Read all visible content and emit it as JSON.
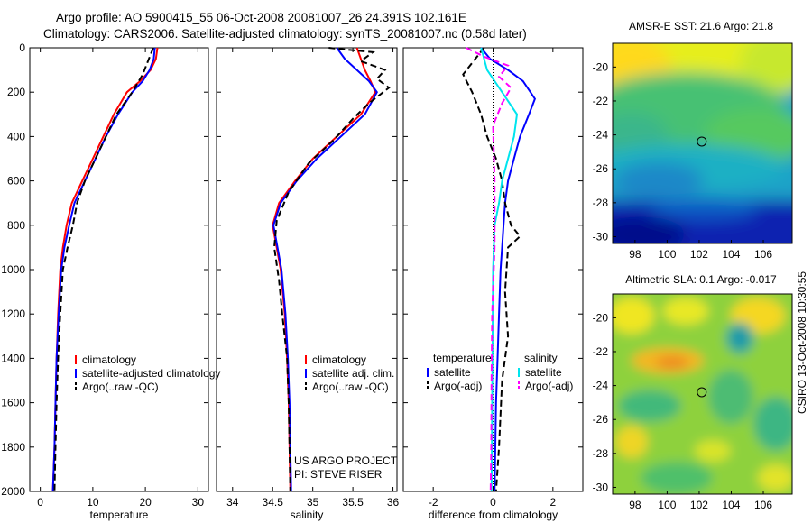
{
  "figure": {
    "title_line1": "Argo profile: AO 5900415_55 06-Oct-2008 20081007_26 24.391S 102.161E",
    "title_line2": "Climatology: CARS2006. Satellite-adjusted climatology: synTS_20081007.nc (0.58d later)",
    "side_stamp": "CSIRO 13-Oct-2008 10:30:55"
  },
  "colors": {
    "climatology": "#ff0000",
    "satellite": "#0000ff",
    "argo": "#000000",
    "salinity_satellite": "#00e5ee",
    "salinity_argo": "#ff00ff"
  },
  "chart_data": [
    {
      "type": "line",
      "id": "temperature",
      "xlabel": "temperature",
      "ylabel": "depth",
      "xlim": [
        -2,
        32
      ],
      "ylim": [
        2000,
        0
      ],
      "xticks": [
        0,
        10,
        20,
        30
      ],
      "yticks": [
        0,
        200,
        400,
        600,
        800,
        1000,
        1200,
        1400,
        1600,
        1800,
        2000
      ],
      "series": [
        {
          "name": "climatology",
          "color": "#ff0000",
          "dash": "solid",
          "x": [
            22.3,
            22,
            21,
            19,
            16.5,
            14,
            12,
            10,
            8,
            6,
            5,
            4.3,
            3.8,
            3.4,
            3.1,
            2.9,
            2.7,
            2.55,
            2.4
          ],
          "y": [
            0,
            50,
            100,
            150,
            200,
            300,
            400,
            500,
            600,
            700,
            800,
            900,
            1000,
            1200,
            1400,
            1600,
            1800,
            1900,
            2000
          ]
        },
        {
          "name": "satellite-adjusted climatology",
          "color": "#0000ff",
          "dash": "solid",
          "x": [
            21.8,
            21.6,
            20.8,
            19.5,
            17.5,
            14.8,
            12.5,
            10.5,
            8.5,
            6.5,
            5.5,
            4.6,
            4,
            3.5,
            3.1,
            2.9,
            2.7,
            2.55,
            2.4
          ],
          "y": [
            0,
            50,
            100,
            150,
            200,
            300,
            400,
            500,
            600,
            700,
            800,
            900,
            1000,
            1200,
            1400,
            1600,
            1800,
            1900,
            2000
          ]
        },
        {
          "name": "Argo(..raw -QC)",
          "color": "#000000",
          "dash": "dashed",
          "x": [
            21.5,
            20.5,
            19.5,
            17.5,
            14.5,
            12.5,
            10.5,
            8.5,
            7,
            6.2,
            5.2,
            4.3,
            3.8,
            3.4,
            3.1,
            2.9,
            2.7
          ],
          "y": [
            0,
            60,
            120,
            200,
            300,
            400,
            500,
            600,
            700,
            800,
            900,
            1000,
            1200,
            1400,
            1600,
            1800,
            2000
          ]
        }
      ],
      "legend": [
        "climatology",
        "satellite-adjusted climatology",
        "Argo(..raw -QC)"
      ]
    },
    {
      "type": "line",
      "id": "salinity",
      "xlabel": "salinity",
      "ylabel": "depth",
      "xlim": [
        33.8,
        36.05
      ],
      "ylim": [
        2000,
        0
      ],
      "xticks": [
        34,
        34.5,
        35,
        35.5,
        36
      ],
      "yticks": [
        0,
        200,
        400,
        600,
        800,
        1000,
        1200,
        1400,
        1600,
        1800,
        2000
      ],
      "series": [
        {
          "name": "climatology",
          "color": "#ff0000",
          "dash": "solid",
          "x": [
            35.55,
            35.6,
            35.65,
            35.72,
            35.78,
            35.6,
            35.3,
            35,
            34.78,
            34.58,
            34.5,
            34.55,
            34.6,
            34.65,
            34.68,
            34.7,
            34.71,
            34.72
          ],
          "y": [
            0,
            50,
            100,
            150,
            200,
            300,
            400,
            500,
            600,
            700,
            800,
            900,
            1000,
            1200,
            1400,
            1600,
            1800,
            2000
          ]
        },
        {
          "name": "satellite adj. clim.",
          "color": "#0000ff",
          "dash": "solid",
          "x": [
            35.3,
            35.4,
            35.55,
            35.7,
            35.8,
            35.65,
            35.35,
            35.05,
            34.8,
            34.6,
            34.51,
            34.56,
            34.61,
            34.66,
            34.69,
            34.71,
            34.72,
            34.73
          ],
          "y": [
            0,
            50,
            100,
            150,
            200,
            300,
            400,
            500,
            600,
            700,
            800,
            900,
            1000,
            1200,
            1400,
            1600,
            1800,
            2000
          ]
        },
        {
          "name": "Argo(..raw -QC)",
          "color": "#000000",
          "dash": "dashed",
          "x": [
            35.2,
            35.75,
            35.6,
            35.9,
            35.8,
            35.95,
            35.7,
            35.5,
            35.25,
            34.95,
            34.7,
            34.55,
            34.52,
            34.58,
            34.62,
            34.68,
            34.7,
            34.71,
            34.72
          ],
          "y": [
            0,
            20,
            60,
            100,
            140,
            180,
            250,
            320,
            420,
            520,
            650,
            780,
            900,
            1050,
            1200,
            1400,
            1600,
            1800,
            2000
          ]
        }
      ],
      "legend": [
        "climatology",
        "satellite adj. clim.",
        "Argo(..raw -QC)"
      ],
      "annotations": [
        "US ARGO PROJECT",
        "PI: STEVE RISER"
      ]
    },
    {
      "type": "line",
      "id": "difference",
      "xlabel": "difference from climatology",
      "ylabel": "depth",
      "xlim": [
        -3,
        3
      ],
      "ylim": [
        2000,
        0
      ],
      "xticks": [
        -2,
        0,
        2
      ],
      "yticks": [
        0,
        200,
        400,
        600,
        800,
        1000,
        1200,
        1400,
        1600,
        1800,
        2000
      ],
      "zero_line": 0,
      "series": [
        {
          "name": "temperature satellite",
          "color": "#0000ff",
          "dash": "solid",
          "x": [
            -0.4,
            -0.1,
            0.5,
            1.0,
            1.4,
            1.2,
            0.9,
            0.7,
            0.5,
            0.4,
            0.35,
            0.3,
            0.25,
            0.2,
            0.15,
            0.1,
            0.05
          ],
          "y": [
            0,
            50,
            100,
            150,
            230,
            300,
            400,
            500,
            600,
            700,
            800,
            900,
            1000,
            1200,
            1400,
            1600,
            2000
          ]
        },
        {
          "name": "temperature Argo(-adj)",
          "color": "#000000",
          "dash": "dashed",
          "x": [
            -0.3,
            -1.0,
            -0.7,
            -0.4,
            -0.2,
            0.1,
            0.3,
            0.4,
            0.5,
            0.6,
            0.9,
            0.5,
            0.4,
            0.5,
            0.3,
            0.2,
            0.1
          ],
          "y": [
            0,
            120,
            200,
            300,
            400,
            500,
            600,
            700,
            750,
            800,
            850,
            900,
            1100,
            1300,
            1500,
            1800,
            2000
          ]
        },
        {
          "name": "salinity satellite",
          "color": "#00e5ee",
          "dash": "solid",
          "x": [
            -0.4,
            -0.2,
            0.3,
            0.8,
            0.7,
            0.5,
            0.3,
            0.2,
            0.05,
            0.0,
            -0.02,
            -0.04,
            -0.05
          ],
          "y": [
            0,
            100,
            200,
            300,
            400,
            500,
            600,
            700,
            800,
            1000,
            1400,
            1800,
            2000
          ]
        },
        {
          "name": "salinity Argo(-adj)",
          "color": "#ff00ff",
          "dash": "dashed",
          "x": [
            -0.9,
            -0.3,
            0.5,
            0.2,
            0.6,
            0.3,
            0.0,
            0.05,
            0.05,
            -0.03,
            -0.05,
            -0.06,
            -0.08
          ],
          "y": [
            0,
            40,
            80,
            130,
            180,
            250,
            350,
            600,
            900,
            1200,
            1500,
            1800,
            2000
          ]
        }
      ],
      "legend_headers": [
        "temperature",
        "salinity"
      ],
      "legend_temperature": [
        "satellite",
        "Argo(-adj)"
      ],
      "legend_salinity": [
        "satellite",
        "Argo(-adj)"
      ]
    },
    {
      "type": "heatmap",
      "id": "sst-map",
      "title": "AMSR-E SST: 21.6 Argo: 21.8",
      "xlim": [
        96.6,
        107.8
      ],
      "ylim": [
        -30.4,
        -18.6
      ],
      "xticks": [
        98,
        100,
        102,
        104,
        106
      ],
      "yticks": [
        -20,
        -22,
        -24,
        -26,
        -28,
        -30
      ],
      "marker": {
        "lon": 102.161,
        "lat": -24.391
      }
    },
    {
      "type": "heatmap",
      "id": "sla-map",
      "title": "Altimetric SLA: 0.1 Argo: -0.017",
      "xlim": [
        96.6,
        107.8
      ],
      "ylim": [
        -30.4,
        -18.6
      ],
      "xticks": [
        98,
        100,
        102,
        104,
        106
      ],
      "yticks": [
        -20,
        -22,
        -24,
        -26,
        -28,
        -30
      ],
      "marker": {
        "lon": 102.161,
        "lat": -24.391
      }
    }
  ]
}
